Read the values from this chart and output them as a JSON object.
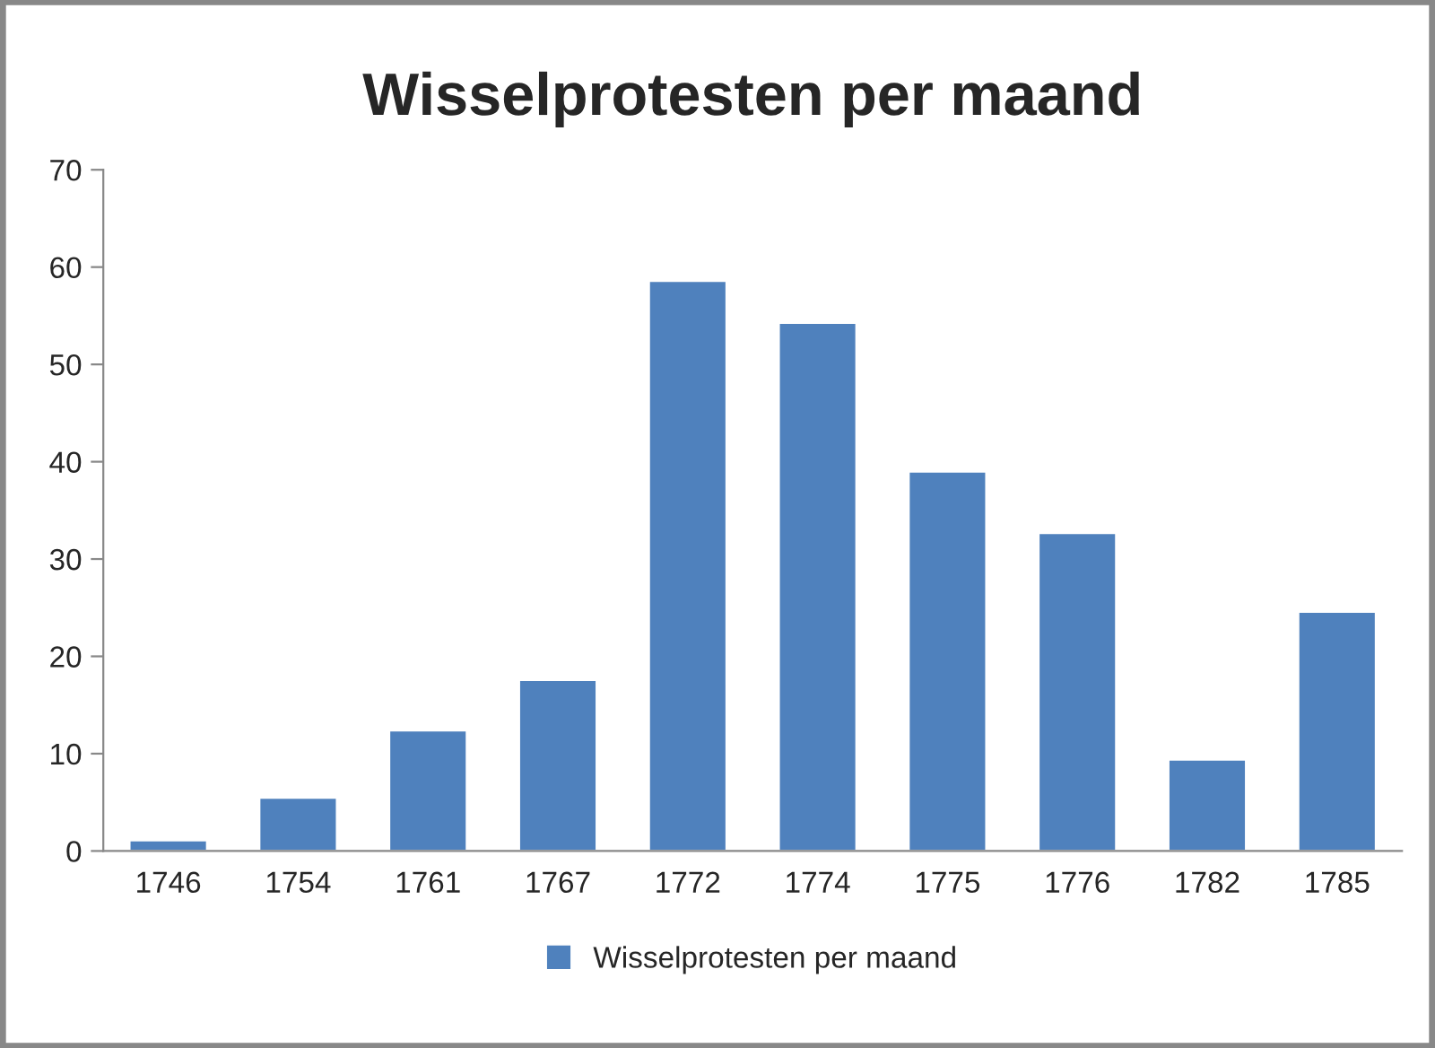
{
  "chart_data": {
    "type": "bar",
    "title": "Wisselprotesten per maand",
    "categories": [
      "1746",
      "1754",
      "1761",
      "1767",
      "1772",
      "1774",
      "1775",
      "1776",
      "1782",
      "1785"
    ],
    "series": [
      {
        "name": "Wisselprotesten per maand",
        "color": "#4f81bd",
        "values": [
          1.1,
          5.5,
          12.4,
          17.6,
          58.6,
          54.3,
          39.0,
          32.7,
          9.4,
          24.6
        ]
      }
    ],
    "ylim": [
      0,
      70
    ],
    "yticks": [
      0,
      10,
      20,
      30,
      40,
      50,
      60,
      70
    ],
    "grid": false,
    "legend": "bottom"
  }
}
